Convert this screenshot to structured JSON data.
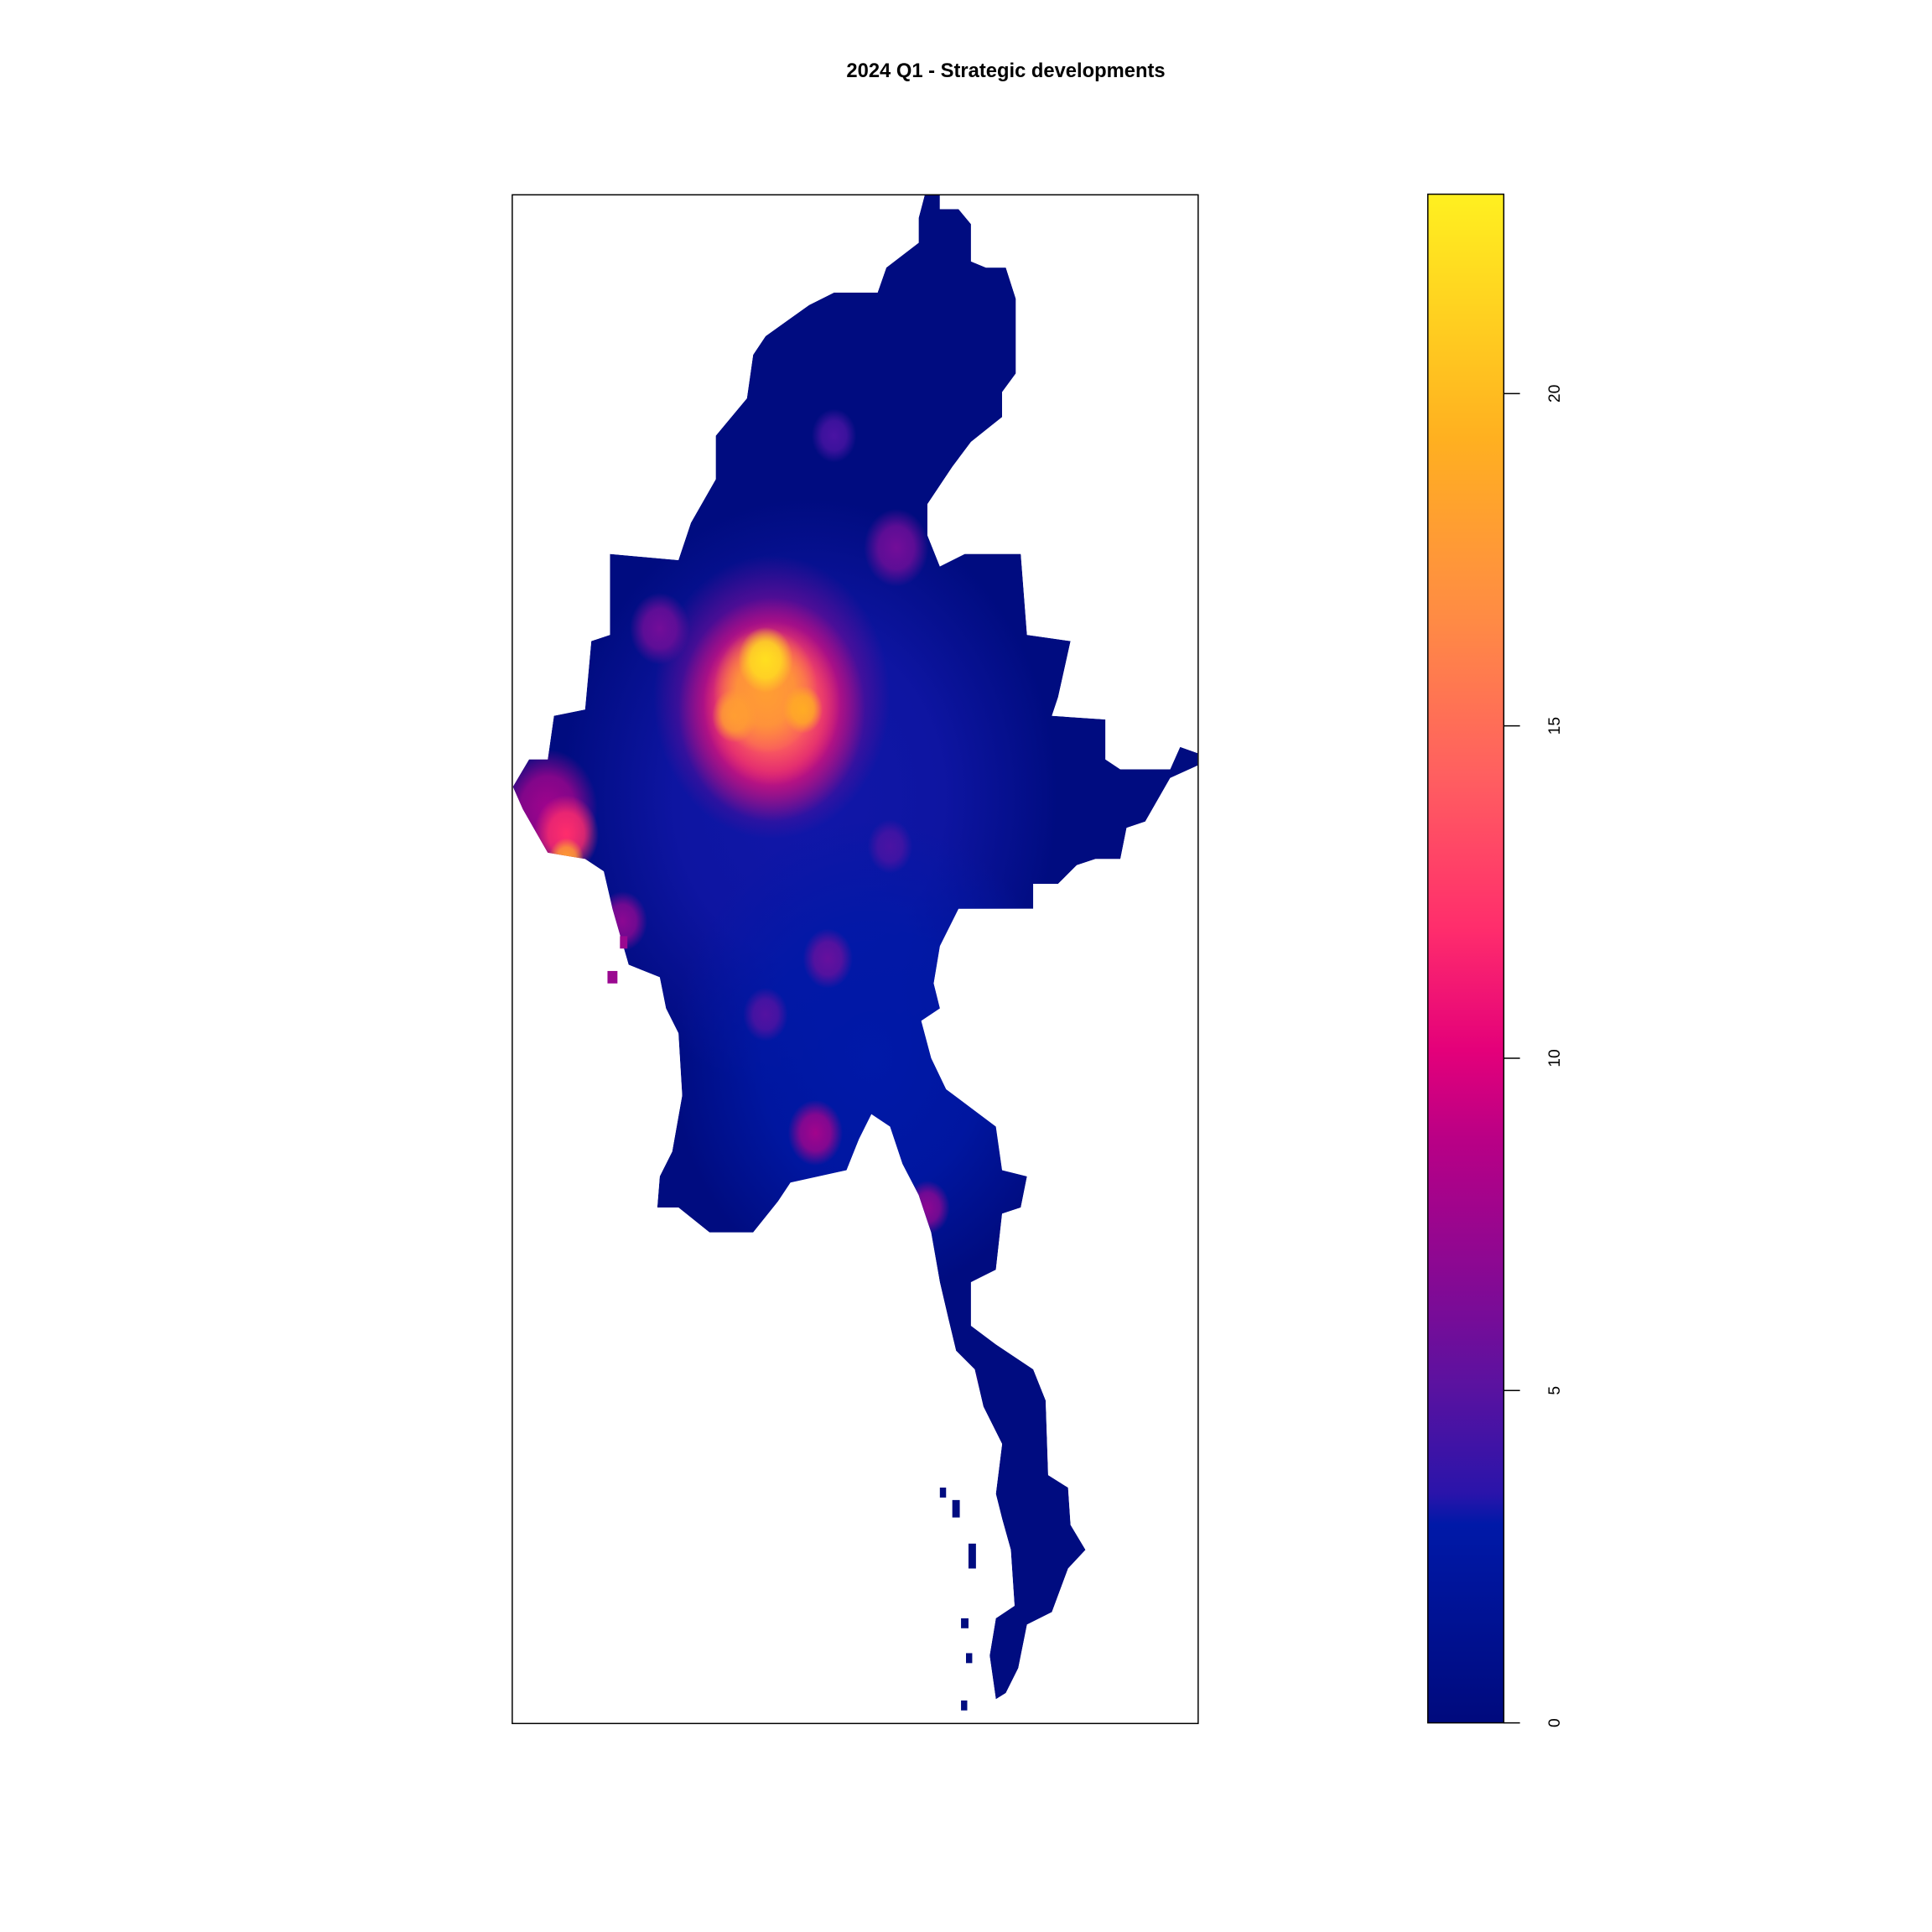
{
  "title": "2024 Q1 - Strategic developments",
  "chart_data": {
    "type": "heatmap",
    "title": "2024 Q1 - Strategic developments",
    "legend": {
      "placement": "right",
      "range": [
        0,
        23
      ],
      "ticks": [
        0,
        5,
        10,
        15,
        20
      ],
      "tick_labels": [
        "0",
        "5",
        "10",
        "15",
        "20"
      ],
      "colors": {
        "low": "#000a7d",
        "mid_low": "#0019a8",
        "mid": "#e6007a",
        "mid_high": "#ff8c45",
        "high": "#ffee20"
      }
    },
    "background_value": 0,
    "peak_value": 23
  }
}
